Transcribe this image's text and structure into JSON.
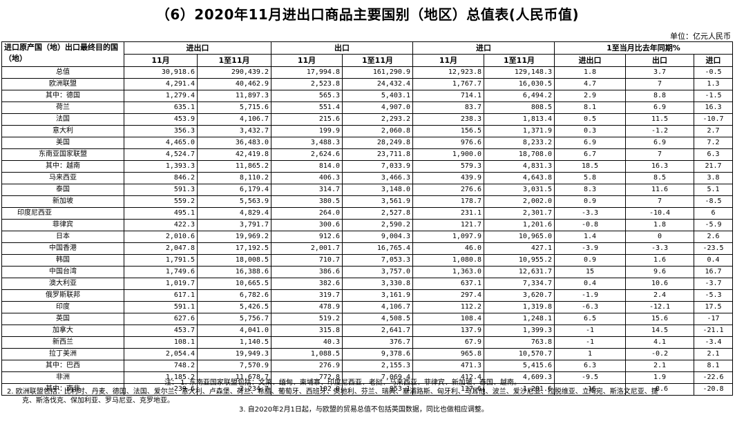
{
  "title": "（6）2020年11月进出口商品主要国别（地区）总值表(人民币值)",
  "unit": "单位：亿元人民币",
  "header": {
    "label": "进口原产国（地）出口最终目的国（地）",
    "groups": [
      "进出口",
      "出口",
      "进口",
      "1至当月比去年同期%"
    ],
    "sub": [
      "11月",
      "1至11月",
      "11月",
      "1至11月",
      "11月",
      "1至11月",
      "进出口",
      "出口",
      "进口"
    ]
  },
  "rows": [
    {
      "name": "总值",
      "v": [
        "30,918.6",
        "290,439.2",
        "17,994.8",
        "161,290.9",
        "12,923.8",
        "129,148.3",
        "1.8",
        "3.7",
        "-0.5"
      ]
    },
    {
      "name": "欧洲联盟",
      "v": [
        "4,291.4",
        "40,462.9",
        "2,523.8",
        "24,432.4",
        "1,767.7",
        "16,030.5",
        "4.7",
        "7",
        "1.3"
      ]
    },
    {
      "name": "其中：德国",
      "v": [
        "1,279.4",
        "11,897.3",
        "565.3",
        "5,403.1",
        "714.1",
        "6,494.2",
        "2.9",
        "8.8",
        "-1.5"
      ]
    },
    {
      "name": "荷兰",
      "v": [
        "635.1",
        "5,715.6",
        "551.4",
        "4,907.0",
        "83.7",
        "808.5",
        "8.1",
        "6.9",
        "16.3"
      ]
    },
    {
      "name": "法国",
      "v": [
        "453.9",
        "4,106.7",
        "215.6",
        "2,293.2",
        "238.3",
        "1,813.4",
        "0.5",
        "11.5",
        "-10.7"
      ]
    },
    {
      "name": "意大利",
      "v": [
        "356.3",
        "3,432.7",
        "199.9",
        "2,060.8",
        "156.5",
        "1,371.9",
        "0.3",
        "-1.2",
        "2.7"
      ]
    },
    {
      "name": "美国",
      "v": [
        "4,465.0",
        "36,483.0",
        "3,488.3",
        "28,249.8",
        "976.6",
        "8,233.2",
        "6.9",
        "6.9",
        "7.2"
      ]
    },
    {
      "name": "东南亚国家联盟",
      "v": [
        "4,524.7",
        "42,419.8",
        "2,624.6",
        "23,711.8",
        "1,900.0",
        "18,708.0",
        "6.7",
        "7",
        "6.3"
      ]
    },
    {
      "name": "其中：越南",
      "v": [
        "1,393.3",
        "11,865.2",
        "814.0",
        "7,033.9",
        "579.3",
        "4,831.3",
        "18.5",
        "16.3",
        "21.7"
      ]
    },
    {
      "name": "马来西亚",
      "v": [
        "846.2",
        "8,110.2",
        "406.3",
        "3,466.3",
        "439.9",
        "4,643.8",
        "5.8",
        "8.5",
        "3.8"
      ]
    },
    {
      "name": "泰国",
      "v": [
        "591.3",
        "6,179.4",
        "314.7",
        "3,148.0",
        "276.6",
        "3,031.5",
        "8.3",
        "11.6",
        "5.1"
      ]
    },
    {
      "name": "新加坡",
      "v": [
        "559.2",
        "5,563.9",
        "380.5",
        "3,561.9",
        "178.7",
        "2,002.0",
        "0.9",
        "7",
        "-8.5"
      ]
    },
    {
      "name": "印度尼西亚",
      "indent": true,
      "v": [
        "495.1",
        "4,829.4",
        "264.0",
        "2,527.8",
        "231.1",
        "2,301.7",
        "-3.3",
        "-10.4",
        "6"
      ]
    },
    {
      "name": "菲律宾",
      "v": [
        "422.3",
        "3,791.7",
        "300.6",
        "2,590.2",
        "121.7",
        "1,201.6",
        "-0.8",
        "1.8",
        "-5.9"
      ]
    },
    {
      "name": "日本",
      "v": [
        "2,010.6",
        "19,969.2",
        "912.6",
        "9,004.3",
        "1,097.9",
        "10,965.0",
        "1.4",
        "0",
        "2.6"
      ]
    },
    {
      "name": "中国香港",
      "v": [
        "2,047.8",
        "17,192.5",
        "2,001.7",
        "16,765.4",
        "46.0",
        "427.1",
        "-3.9",
        "-3.3",
        "-23.5"
      ]
    },
    {
      "name": "韩国",
      "v": [
        "1,791.5",
        "18,008.5",
        "710.7",
        "7,053.3",
        "1,080.8",
        "10,955.2",
        "0.9",
        "1.6",
        "0.4"
      ]
    },
    {
      "name": "中国台湾",
      "v": [
        "1,749.6",
        "16,388.6",
        "386.6",
        "3,757.0",
        "1,363.0",
        "12,631.7",
        "15",
        "9.6",
        "16.7"
      ]
    },
    {
      "name": "澳大利亚",
      "v": [
        "1,019.7",
        "10,665.5",
        "382.6",
        "3,330.8",
        "637.1",
        "7,334.7",
        "0.4",
        "10.6",
        "-3.7"
      ]
    },
    {
      "name": "俄罗斯联邦",
      "v": [
        "617.1",
        "6,782.6",
        "319.7",
        "3,161.9",
        "297.4",
        "3,620.7",
        "-1.9",
        "2.4",
        "-5.3"
      ]
    },
    {
      "name": "印度",
      "v": [
        "591.1",
        "5,426.5",
        "478.9",
        "4,106.7",
        "112.2",
        "1,319.8",
        "-6.3",
        "-12.1",
        "17.5"
      ]
    },
    {
      "name": "英国",
      "v": [
        "627.6",
        "5,756.7",
        "519.2",
        "4,508.5",
        "108.4",
        "1,248.1",
        "6.5",
        "15.6",
        "-17"
      ]
    },
    {
      "name": "加拿大",
      "v": [
        "453.7",
        "4,041.0",
        "315.8",
        "2,641.7",
        "137.9",
        "1,399.3",
        "-1",
        "14.5",
        "-21.1"
      ]
    },
    {
      "name": "新西兰",
      "v": [
        "108.1",
        "1,140.5",
        "40.3",
        "376.7",
        "67.9",
        "763.8",
        "-1",
        "4.1",
        "-3.4"
      ]
    },
    {
      "name": "拉丁美洲",
      "v": [
        "2,054.4",
        "19,949.3",
        "1,088.5",
        "9,378.6",
        "965.8",
        "10,570.7",
        "1",
        "-0.2",
        "2.1"
      ]
    },
    {
      "name": "其中：巴西",
      "v": [
        "748.2",
        "7,570.9",
        "276.9",
        "2,155.3",
        "471.3",
        "5,415.6",
        "6.3",
        "2.1",
        "8.1"
      ]
    },
    {
      "name": "非洲",
      "v": [
        "1,185.2",
        "11,678.7",
        "772.8",
        "7,069.4",
        "412.4",
        "4,609.3",
        "-9.5",
        "1.9",
        "-22.6"
      ]
    },
    {
      "name": "其中：南非",
      "v": [
        "239.6",
        "2,234.7",
        "102.0",
        "953.1",
        "137.6",
        "1,281.6",
        "-16",
        "-8.6",
        "-20.8"
      ]
    }
  ],
  "notes": {
    "n1": "注：  1.  东南亚国家联盟包括：文莱、缅甸、柬埔寨、印度尼西亚、老挝、马来西亚、菲律宾、新加坡、泰国、越南。",
    "n2a": "2.  欧洲联盟包括：比利时、丹麦、德国、法国、爱尔兰、意大利、卢森堡、荷兰、希腊、葡萄牙、西班牙、奥地利、芬兰、瑞典、塞浦路斯、匈牙利、马耳他、波兰、爱沙尼亚、拉脱维亚、立陶宛、斯洛文尼亚、捷",
    "n2b": "克、斯洛伐克、保加利亚、罗马尼亚、克罗地亚。",
    "n3": "3.  自2020年2月1日起，与欧盟的贸易总值不包括英国数据，同比也做相应调整。"
  }
}
